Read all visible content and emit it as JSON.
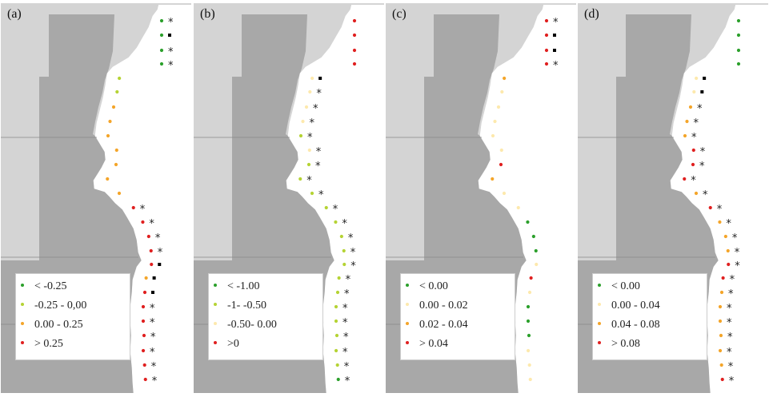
{
  "colors": {
    "background": "#ffffff",
    "land_light": "#d4d4d4",
    "land_dark": "#a8a8a8",
    "border": "#8a8a8a",
    "green": "#2ca02c",
    "yellow_green": "#b5d334",
    "pale": "#fde9ad",
    "orange": "#f4a52a",
    "red": "#e02020",
    "marker": "#000000"
  },
  "panels": [
    {
      "label": "(a)",
      "legend": [
        {
          "text": "< -0.25",
          "color": "#2ca02c"
        },
        {
          "text": "-0.25 - 0,00",
          "color": "#b5d334"
        },
        {
          "text": "0.00 - 0.25",
          "color": "#f4a52a"
        },
        {
          "text": "> 0.25",
          "color": "#e02020"
        }
      ],
      "points": [
        {
          "y": 22,
          "color": "#2ca02c",
          "mark": "*"
        },
        {
          "y": 40,
          "color": "#2ca02c",
          "mark": "square"
        },
        {
          "y": 59,
          "color": "#2ca02c",
          "mark": "*"
        },
        {
          "y": 76,
          "color": "#2ca02c",
          "mark": "*"
        },
        {
          "y": 94,
          "color": "#b5d334",
          "mark": ""
        },
        {
          "y": 111,
          "color": "#b5d334",
          "mark": ""
        },
        {
          "y": 130,
          "color": "#f4a52a",
          "mark": ""
        },
        {
          "y": 148,
          "color": "#f4a52a",
          "mark": ""
        },
        {
          "y": 166,
          "color": "#f4a52a",
          "mark": ""
        },
        {
          "y": 184,
          "color": "#f4a52a",
          "mark": ""
        },
        {
          "y": 202,
          "color": "#f4a52a",
          "mark": ""
        },
        {
          "y": 220,
          "color": "#f4a52a",
          "mark": ""
        },
        {
          "y": 238,
          "color": "#f4a52a",
          "mark": ""
        },
        {
          "y": 256,
          "color": "#e02020",
          "mark": "*"
        },
        {
          "y": 274,
          "color": "#e02020",
          "mark": "*"
        },
        {
          "y": 292,
          "color": "#e02020",
          "mark": "*"
        },
        {
          "y": 310,
          "color": "#e02020",
          "mark": "*"
        },
        {
          "y": 327,
          "color": "#e02020",
          "mark": "square"
        },
        {
          "y": 344,
          "color": "#f4a52a",
          "mark": "square"
        },
        {
          "y": 362,
          "color": "#e02020",
          "mark": "square"
        },
        {
          "y": 380,
          "color": "#e02020",
          "mark": "*"
        },
        {
          "y": 398,
          "color": "#e02020",
          "mark": "*"
        },
        {
          "y": 416,
          "color": "#e02020",
          "mark": "*"
        },
        {
          "y": 435,
          "color": "#e02020",
          "mark": "*"
        },
        {
          "y": 453,
          "color": "#e02020",
          "mark": "*"
        },
        {
          "y": 471,
          "color": "#e02020",
          "mark": "*"
        }
      ]
    },
    {
      "label": "(b)",
      "legend": [
        {
          "text": "< -1.00",
          "color": "#2ca02c"
        },
        {
          "text": "-1- -0.50",
          "color": "#b5d334"
        },
        {
          "text": "-0.50- 0.00",
          "color": "#fde9ad"
        },
        {
          "text": ">0",
          "color": "#e02020"
        }
      ],
      "points": [
        {
          "y": 22,
          "color": "#e02020",
          "mark": ""
        },
        {
          "y": 40,
          "color": "#e02020",
          "mark": ""
        },
        {
          "y": 59,
          "color": "#e02020",
          "mark": ""
        },
        {
          "y": 76,
          "color": "#e02020",
          "mark": ""
        },
        {
          "y": 94,
          "color": "#fde9ad",
          "mark": "square"
        },
        {
          "y": 111,
          "color": "#fde9ad",
          "mark": "*"
        },
        {
          "y": 130,
          "color": "#fde9ad",
          "mark": "*"
        },
        {
          "y": 148,
          "color": "#fde9ad",
          "mark": "*"
        },
        {
          "y": 166,
          "color": "#b5d334",
          "mark": "*"
        },
        {
          "y": 184,
          "color": "#fde9ad",
          "mark": "*"
        },
        {
          "y": 202,
          "color": "#b5d334",
          "mark": "*"
        },
        {
          "y": 220,
          "color": "#b5d334",
          "mark": "*"
        },
        {
          "y": 238,
          "color": "#b5d334",
          "mark": "*"
        },
        {
          "y": 256,
          "color": "#b5d334",
          "mark": "*"
        },
        {
          "y": 274,
          "color": "#b5d334",
          "mark": "*"
        },
        {
          "y": 292,
          "color": "#b5d334",
          "mark": "*"
        },
        {
          "y": 310,
          "color": "#b5d334",
          "mark": "*"
        },
        {
          "y": 327,
          "color": "#b5d334",
          "mark": "*"
        },
        {
          "y": 344,
          "color": "#b5d334",
          "mark": "*"
        },
        {
          "y": 362,
          "color": "#b5d334",
          "mark": "*"
        },
        {
          "y": 380,
          "color": "#b5d334",
          "mark": "*"
        },
        {
          "y": 398,
          "color": "#b5d334",
          "mark": "*"
        },
        {
          "y": 416,
          "color": "#b5d334",
          "mark": "*"
        },
        {
          "y": 435,
          "color": "#b5d334",
          "mark": "*"
        },
        {
          "y": 453,
          "color": "#b5d334",
          "mark": "*"
        },
        {
          "y": 471,
          "color": "#2ca02c",
          "mark": "*"
        }
      ]
    },
    {
      "label": "(c)",
      "legend": [
        {
          "text": "< 0.00",
          "color": "#2ca02c"
        },
        {
          "text": "0.00 - 0.02",
          "color": "#fde9ad"
        },
        {
          "text": "0.02 - 0.04",
          "color": "#f4a52a"
        },
        {
          "text": "> 0.04",
          "color": "#e02020"
        }
      ],
      "points": [
        {
          "y": 22,
          "color": "#e02020",
          "mark": "*"
        },
        {
          "y": 40,
          "color": "#e02020",
          "mark": "square"
        },
        {
          "y": 59,
          "color": "#e02020",
          "mark": "square"
        },
        {
          "y": 76,
          "color": "#e02020",
          "mark": "*"
        },
        {
          "y": 94,
          "color": "#f4a52a",
          "mark": ""
        },
        {
          "y": 111,
          "color": "#fde9ad",
          "mark": ""
        },
        {
          "y": 130,
          "color": "#fde9ad",
          "mark": ""
        },
        {
          "y": 148,
          "color": "#fde9ad",
          "mark": ""
        },
        {
          "y": 166,
          "color": "#fde9ad",
          "mark": ""
        },
        {
          "y": 184,
          "color": "#fde9ad",
          "mark": ""
        },
        {
          "y": 202,
          "color": "#e02020",
          "mark": ""
        },
        {
          "y": 220,
          "color": "#f4a52a",
          "mark": ""
        },
        {
          "y": 238,
          "color": "#fde9ad",
          "mark": ""
        },
        {
          "y": 256,
          "color": "#fde9ad",
          "mark": ""
        },
        {
          "y": 274,
          "color": "#2ca02c",
          "mark": ""
        },
        {
          "y": 292,
          "color": "#2ca02c",
          "mark": ""
        },
        {
          "y": 310,
          "color": "#2ca02c",
          "mark": ""
        },
        {
          "y": 327,
          "color": "#fde9ad",
          "mark": ""
        },
        {
          "y": 344,
          "color": "#e02020",
          "mark": ""
        },
        {
          "y": 362,
          "color": "#fde9ad",
          "mark": ""
        },
        {
          "y": 380,
          "color": "#2ca02c",
          "mark": ""
        },
        {
          "y": 398,
          "color": "#2ca02c",
          "mark": ""
        },
        {
          "y": 416,
          "color": "#2ca02c",
          "mark": ""
        },
        {
          "y": 435,
          "color": "#fde9ad",
          "mark": ""
        },
        {
          "y": 453,
          "color": "#fde9ad",
          "mark": ""
        },
        {
          "y": 471,
          "color": "#fde9ad",
          "mark": ""
        }
      ]
    },
    {
      "label": "(d)",
      "legend": [
        {
          "text": "< 0.00",
          "color": "#2ca02c"
        },
        {
          "text": "0.00 - 0.04",
          "color": "#fde9ad"
        },
        {
          "text": "0.04 - 0.08",
          "color": "#f4a52a"
        },
        {
          "text": "> 0.08",
          "color": "#e02020"
        }
      ],
      "points": [
        {
          "y": 22,
          "color": "#2ca02c",
          "mark": ""
        },
        {
          "y": 40,
          "color": "#2ca02c",
          "mark": ""
        },
        {
          "y": 59,
          "color": "#2ca02c",
          "mark": ""
        },
        {
          "y": 76,
          "color": "#2ca02c",
          "mark": ""
        },
        {
          "y": 94,
          "color": "#fde9ad",
          "mark": "square"
        },
        {
          "y": 111,
          "color": "#fde9ad",
          "mark": "square"
        },
        {
          "y": 130,
          "color": "#f4a52a",
          "mark": "*"
        },
        {
          "y": 148,
          "color": "#f4a52a",
          "mark": "*"
        },
        {
          "y": 166,
          "color": "#f4a52a",
          "mark": "*"
        },
        {
          "y": 184,
          "color": "#e02020",
          "mark": "*"
        },
        {
          "y": 202,
          "color": "#e02020",
          "mark": "*"
        },
        {
          "y": 220,
          "color": "#e02020",
          "mark": "*"
        },
        {
          "y": 238,
          "color": "#f4a52a",
          "mark": "*"
        },
        {
          "y": 256,
          "color": "#e02020",
          "mark": "*"
        },
        {
          "y": 274,
          "color": "#f4a52a",
          "mark": "*"
        },
        {
          "y": 292,
          "color": "#f4a52a",
          "mark": "*"
        },
        {
          "y": 310,
          "color": "#f4a52a",
          "mark": "*"
        },
        {
          "y": 327,
          "color": "#e02020",
          "mark": "*"
        },
        {
          "y": 344,
          "color": "#e02020",
          "mark": "*"
        },
        {
          "y": 362,
          "color": "#f4a52a",
          "mark": "*"
        },
        {
          "y": 380,
          "color": "#f4a52a",
          "mark": "*"
        },
        {
          "y": 398,
          "color": "#f4a52a",
          "mark": "*"
        },
        {
          "y": 416,
          "color": "#f4a52a",
          "mark": "*"
        },
        {
          "y": 435,
          "color": "#f4a52a",
          "mark": "*"
        },
        {
          "y": 453,
          "color": "#f4a52a",
          "mark": "*"
        },
        {
          "y": 471,
          "color": "#e02020",
          "mark": "*"
        }
      ]
    }
  ]
}
